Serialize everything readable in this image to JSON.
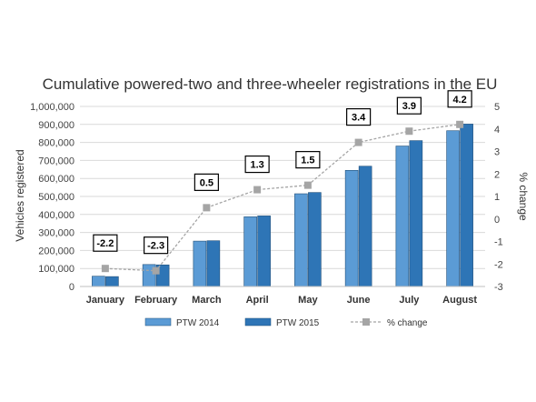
{
  "chart_data": {
    "type": "bar",
    "title": "Cumulative powered-two and three-wheeler registrations in the EU",
    "ylabel": "Vehicles registered",
    "y2label": "% change",
    "categories": [
      "January",
      "February",
      "March",
      "April",
      "May",
      "June",
      "July",
      "August"
    ],
    "ylim": [
      0,
      1000000
    ],
    "y2lim": [
      -3,
      5
    ],
    "yticks": [
      "0",
      "100,000",
      "200,000",
      "300,000",
      "400,000",
      "500,000",
      "600,000",
      "700,000",
      "800,000",
      "900,000",
      "1,000,000"
    ],
    "y2ticks": [
      "-3",
      "-2",
      "-1",
      "0",
      "1",
      "2",
      "3",
      "4",
      "5"
    ],
    "series": [
      {
        "name": "PTW 2014",
        "type": "bar",
        "axis": "left",
        "color": "#5b9bd5",
        "values": [
          57000,
          122000,
          252000,
          387000,
          515000,
          645000,
          780000,
          865000
        ]
      },
      {
        "name": "PTW 2015",
        "type": "bar",
        "axis": "left",
        "color": "#2e75b6",
        "values": [
          55000,
          120000,
          254000,
          392000,
          522000,
          668000,
          810000,
          902000
        ]
      },
      {
        "name": "% change",
        "type": "line",
        "axis": "right",
        "color": "#a5a5a5",
        "dashed": true,
        "values": [
          -2.2,
          -2.3,
          0.5,
          1.3,
          1.5,
          3.4,
          3.9,
          4.2
        ],
        "labels": [
          "-2.2",
          "-2.3",
          "0.5",
          "1.3",
          "1.5",
          "3.4",
          "3.9",
          "4.2"
        ]
      }
    ],
    "grid": true,
    "legend": "bottom"
  }
}
